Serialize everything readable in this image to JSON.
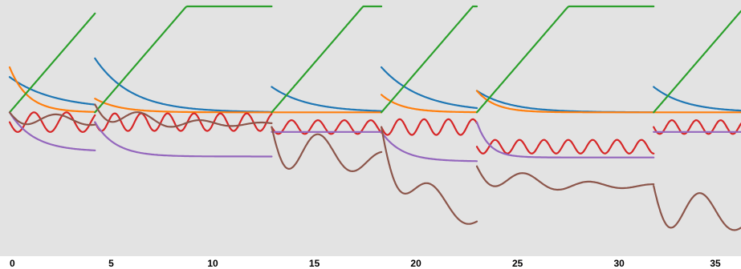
{
  "chart_data": {
    "type": "line",
    "title": "",
    "xlabel": "",
    "ylabel": "",
    "xlim": [
      0,
      36
    ],
    "ylim": [
      -1.45,
      1.08
    ],
    "grid": false,
    "background_color": "#e3e3e3",
    "x_ticks": [
      0,
      5,
      10,
      15,
      20,
      25,
      30,
      35
    ],
    "x_tick_labels": [
      "0",
      "5",
      "10",
      "15",
      "20",
      "25",
      "30",
      "35"
    ],
    "segments": [
      [
        0,
        4.2
      ],
      [
        4.2,
        12.9
      ],
      [
        12.9,
        18.3
      ],
      [
        18.3,
        23
      ],
      [
        23,
        31.7
      ],
      [
        31.7,
        36
      ]
    ],
    "series": [
      {
        "color": "#1f77b4",
        "start": [
          0.36,
          0.55,
          0.26,
          0.46,
          0.22,
          0.26
        ],
        "end": [
          0.03,
          0.0,
          0.0,
          0.0,
          0.0,
          0.0
        ],
        "tau": [
          2.2,
          1.8,
          1.8,
          2.0,
          1.6,
          1.6
        ]
      },
      {
        "color": "#ff7f0e",
        "start": [
          0.46,
          0.14,
          0.0,
          0.18,
          0.22,
          0.0
        ],
        "end": [
          0.0,
          0.0,
          0.0,
          0.0,
          0.0,
          0.0
        ],
        "tau": [
          0.9,
          1.2,
          1.0,
          1.0,
          0.9,
          1.0
        ]
      },
      {
        "color": "#2ca02c",
        "start": [
          0.0,
          0.0,
          0.0,
          0.0,
          0.0,
          0.0
        ],
        "slope": [
          0.24,
          0.24,
          0.24,
          0.24,
          0.24,
          0.24
        ]
      },
      {
        "color": "#d62728",
        "base": [
          -0.1,
          -0.1,
          -0.15,
          -0.15,
          -0.35,
          -0.15
        ],
        "amp": [
          0.1,
          0.09,
          0.07,
          0.08,
          0.07,
          0.07
        ],
        "period": [
          1.6,
          1.3,
          1.3,
          1.2,
          1.2,
          1.2
        ]
      },
      {
        "color": "#9467bd",
        "start": [
          0.0,
          -0.1,
          -0.2,
          -0.2,
          -0.1,
          -0.2
        ],
        "end": [
          -0.4,
          -0.45,
          -0.2,
          -0.5,
          -0.46,
          -0.2
        ],
        "tau": [
          1.2,
          1.0,
          1.0,
          1.0,
          0.6,
          1.0
        ]
      },
      {
        "color": "#8c564b",
        "start": [
          0.0,
          0.08,
          -0.15,
          -0.15,
          -0.55,
          -0.75
        ],
        "end": [
          -0.1,
          -0.12,
          -0.5,
          -1.1,
          -0.75,
          -1.1
        ],
        "amp": [
          0.1,
          0.12,
          0.35,
          0.3,
          0.15,
          0.35
        ],
        "period": [
          3.2,
          3.0,
          3.2,
          3.4,
          3.2,
          3.2
        ]
      }
    ]
  }
}
